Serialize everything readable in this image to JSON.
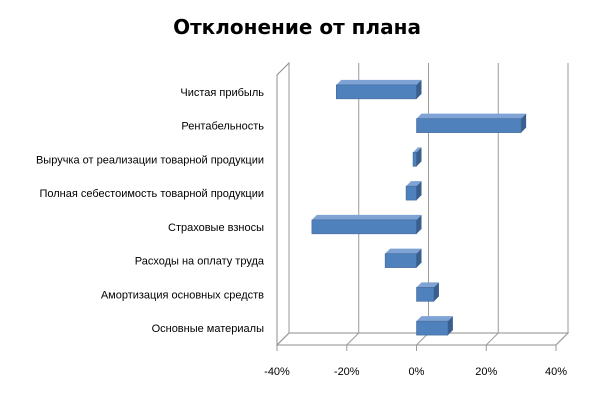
{
  "chart_data": {
    "type": "bar",
    "orientation": "horizontal",
    "style": "3d-clustered",
    "title": "Отклонение от плана",
    "categories": [
      "Чистая прибыль",
      "Рентабельность",
      "Выручка от реализации товарной продукции",
      "Полная себестоимость товарной продукции",
      "Страховые взносы",
      "Расходы на оплату труда",
      "Амортизация основных средств",
      "Основные материалы"
    ],
    "values": [
      -0.23,
      0.3,
      -0.01,
      -0.03,
      -0.3,
      -0.09,
      0.05,
      0.09
    ],
    "xlim": [
      -0.4,
      0.4
    ],
    "x_ticks": [
      -0.4,
      -0.2,
      0,
      0.2,
      0.4
    ],
    "x_tick_labels": [
      "-40%",
      "-20%",
      "0%",
      "20%",
      "40%"
    ],
    "xlabel": "",
    "ylabel": "",
    "grid": true,
    "legend": "none",
    "colors": {
      "bar_front": "#4f81bd",
      "bar_top": "#7ea3d4",
      "bar_side": "#3a5f8f",
      "grid": "#9a9a9a"
    }
  }
}
